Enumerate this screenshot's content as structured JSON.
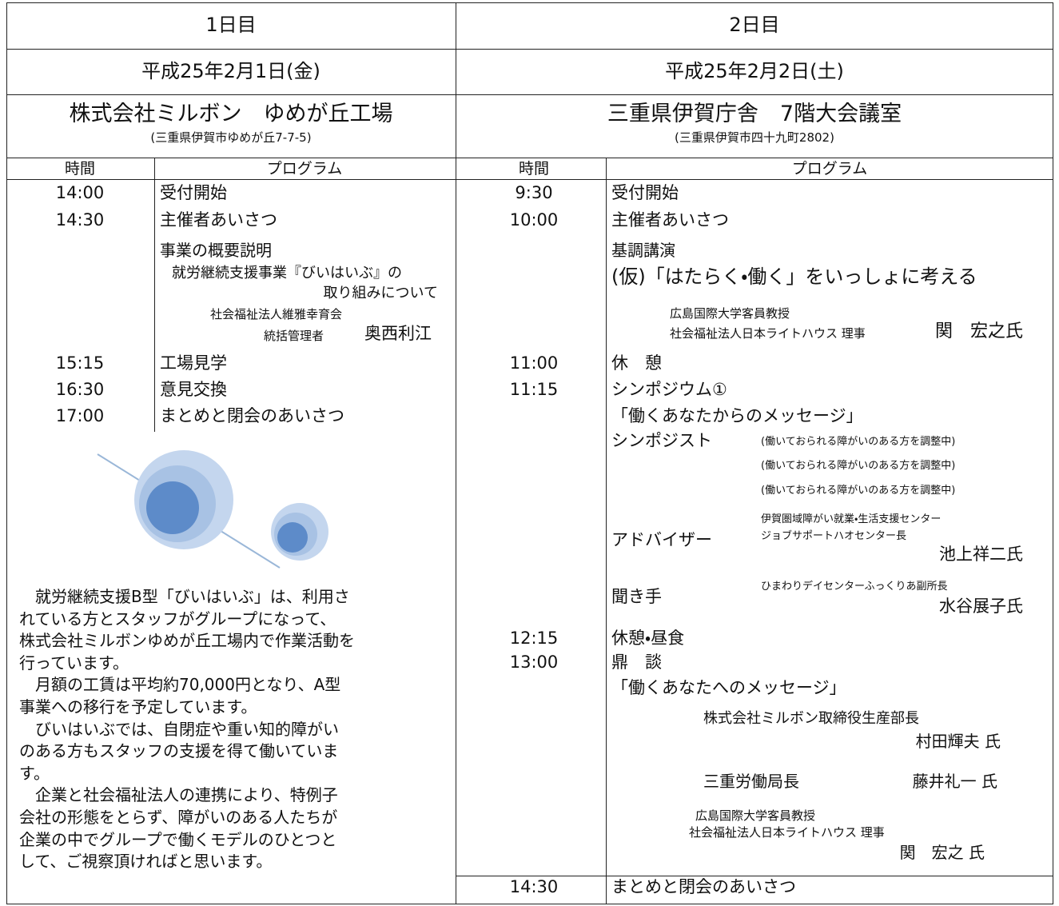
{
  "days": [
    {
      "label": "1日目",
      "date": "平成25年2月1日(金)",
      "venue": "株式会社ミルボン　ゆめが丘工場",
      "address": "(三重県伊賀市ゆめが丘7-7-5)",
      "headers": [
        "時間",
        "プログラム"
      ],
      "times": [
        "14:00",
        "14:30",
        "15:15",
        "16:30",
        "17:00"
      ],
      "program": [
        "受付開始",
        "主催者あいさつ",
        "事業の概要説明",
        "就労継続支援事業『びいはいぶ』の",
        "取り組みについて",
        "社会福祉法人維雅幸育会",
        "統括管理者",
        "奥西利江",
        "工場見学",
        "意見交換",
        "まとめと閉会のあいさつ"
      ],
      "description": [
        "　就労継続支援B型「びいはいぶ」は、利用さ",
        "れている方とスタッフがグループになって、",
        "株式会社ミルボンゆめが丘工場内で作業活動を",
        "行っています。",
        "　月額の工賃は平均約70,000円となり、A型",
        "事業への移行を予定しています。",
        "　びいはいぶでは、自閉症や重い知的障がい",
        "のある方もスタッフの支援を得て働いていま",
        "す。",
        "　企業と社会福祉法人の連携により、特例子",
        "会社の形態をとらず、障がいのある人たちが",
        "企業の中でグループで働くモデルのひとつと",
        "して、ご視察頂ければと思います。"
      ]
    },
    {
      "label": "2日目",
      "date": "平成25年2月2日(土)",
      "venue": "三重県伊賀庁舎　7階大会議室",
      "address": "(三重県伊賀市四十九町2802)",
      "headers": [
        "時間",
        "プログラム"
      ],
      "times": [
        "9:30",
        "10:00",
        "11:00",
        "11:15",
        "12:15",
        "13:00",
        "14:30"
      ],
      "program": [
        "受付開始",
        "主催者あいさつ",
        "基調講演",
        "(仮)「はたらく・働く」をいっしょに考える",
        "広島国際大学客員教授",
        "社会福祉法人日本ライトハウス 理事",
        "関　宏之氏",
        "休　憩",
        "シンポジウム①",
        "「働くあなたからのメッセージ」",
        "シンポジスト",
        "(働いておられる障がいのある方を調整中)",
        "(働いておられる障がいのある方を調整中)",
        "(働いておられる障がいのある方を調整中)",
        "伊賀圏域障がい就業・生活支援センター",
        "ジョブサポートハオセンター長",
        "アドバイザー",
        "池上祥二氏",
        "ひまわりデイセンターふっくりあ副所長",
        "聞き手",
        "水谷展子氏",
        "休憩・昼食",
        "鼎　談",
        "「働くあなたへのメッセージ」",
        "株式会社ミルボン取締役生産部長",
        "村田輝夫 氏",
        "三重労働局長",
        "藤井礼一 氏",
        "広島国際大学客員教授",
        "社会福祉法人日本ライトハウス 理事",
        "関　宏之 氏",
        "まとめと閉会のあいさつ"
      ]
    }
  ]
}
